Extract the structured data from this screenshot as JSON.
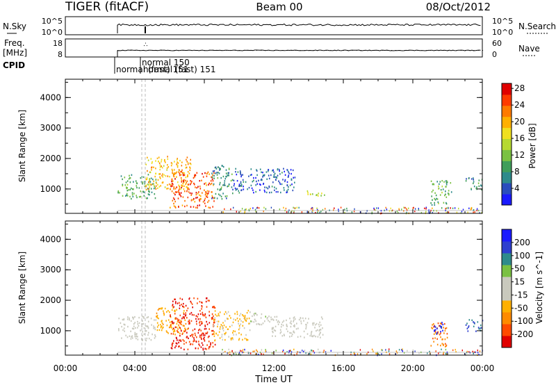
{
  "header": {
    "radar": "TIGER (fitACF)",
    "beam": "Beam 00",
    "date": "08/Oct/2012"
  },
  "sky_panel": {
    "left_label": "N.Sky",
    "right_label": "N.Search",
    "left_ticks": [
      "10^5",
      "10^0"
    ],
    "right_ticks": [
      "10^5",
      "10^0"
    ]
  },
  "freq_panel": {
    "left_label_1": "Freq.",
    "left_label_2": "[MHz]",
    "right_label": "Nave",
    "left_ticks": [
      "18",
      "8"
    ],
    "right_ticks": [
      "60",
      "0"
    ]
  },
  "cpid": {
    "label": "CPID",
    "mode_labels": [
      "normal (fast) 151",
      "normal 150",
      "normal (fast) 151"
    ]
  },
  "axes": {
    "ylabel": "Slant Range [km]",
    "xlabel": "Time UT",
    "xticks": [
      "00:00",
      "04:00",
      "08:00",
      "12:00",
      "16:00",
      "20:00",
      "00:00"
    ],
    "yticks": [
      "1000",
      "2000",
      "3000",
      "4000"
    ]
  },
  "colorbars": {
    "power": {
      "label": "Power [dB]",
      "ticks": [
        "4",
        "8",
        "12",
        "16",
        "20",
        "24",
        "28"
      ],
      "colors": [
        "#1a1aff",
        "#2a4dbd",
        "#2e8b8b",
        "#3f9e5a",
        "#7ac142",
        "#b6d930",
        "#f0e020",
        "#ffb000",
        "#ff7a00",
        "#ff3a00",
        "#e00000"
      ]
    },
    "velocity": {
      "label": "Velocity [m s^-1]",
      "ticks": [
        "200",
        "100",
        "50",
        "15",
        "-15",
        "-50",
        "-100",
        "-200"
      ],
      "colors": [
        "#1a1aff",
        "#2e3fcf",
        "#2e8b8b",
        "#7ac142",
        "#c9c9bd",
        "#c9c9bd",
        "#ffb000",
        "#ff8a00",
        "#ff4a00",
        "#e00000"
      ]
    }
  },
  "chart_data": {
    "type": "heatmap",
    "x_range_hours": [
      0,
      24
    ],
    "y_range_km": [
      200,
      4600
    ],
    "power_panel": {
      "value_range_db": [
        0,
        30
      ],
      "blobs": [
        {
          "t0": 3.0,
          "t1": 5.2,
          "r0": 700,
          "r1": 1500,
          "value": 10
        },
        {
          "t0": 4.6,
          "t1": 7.2,
          "r0": 1000,
          "r1": 2100,
          "value": 20
        },
        {
          "t0": 6.0,
          "t1": 8.6,
          "r0": 400,
          "r1": 1600,
          "value": 25
        },
        {
          "t0": 8.4,
          "t1": 9.6,
          "r0": 700,
          "r1": 1800,
          "value": 8
        },
        {
          "t0": 9.6,
          "t1": 13.2,
          "r0": 900,
          "r1": 1700,
          "value": 5
        },
        {
          "t0": 13.8,
          "t1": 15.0,
          "r0": 800,
          "r1": 1000,
          "value": 16
        },
        {
          "t0": 21.0,
          "t1": 22.2,
          "r0": 500,
          "r1": 1300,
          "value": 10
        },
        {
          "t0": 23.0,
          "t1": 24.0,
          "r0": 1000,
          "r1": 1400,
          "value": 8
        }
      ]
    },
    "velocity_panel": {
      "value_range_ms": [
        -250,
        250
      ],
      "blobs": [
        {
          "t0": 3.0,
          "t1": 5.2,
          "r0": 700,
          "r1": 1500,
          "value": 0
        },
        {
          "t0": 5.2,
          "t1": 7.0,
          "r0": 900,
          "r1": 1800,
          "value": -80
        },
        {
          "t0": 6.0,
          "t1": 8.6,
          "r0": 400,
          "r1": 2100,
          "value": -200
        },
        {
          "t0": 8.5,
          "t1": 10.6,
          "r0": 700,
          "r1": 1700,
          "value": -60
        },
        {
          "t0": 10.6,
          "t1": 11.8,
          "r0": 1200,
          "r1": 1600,
          "value": 30
        },
        {
          "t0": 11.8,
          "t1": 14.8,
          "r0": 800,
          "r1": 1500,
          "value": 0
        },
        {
          "t0": 21.0,
          "t1": 22.0,
          "r0": 500,
          "r1": 1300,
          "value": -150
        },
        {
          "t0": 21.2,
          "t1": 21.8,
          "r0": 900,
          "r1": 1400,
          "value": 200
        },
        {
          "t0": 23.0,
          "t1": 24.0,
          "r0": 1000,
          "r1": 1400,
          "value": 150
        }
      ]
    },
    "mode_change_times_hours": [
      4.4,
      4.6
    ],
    "data_start_hour": 3.0
  }
}
